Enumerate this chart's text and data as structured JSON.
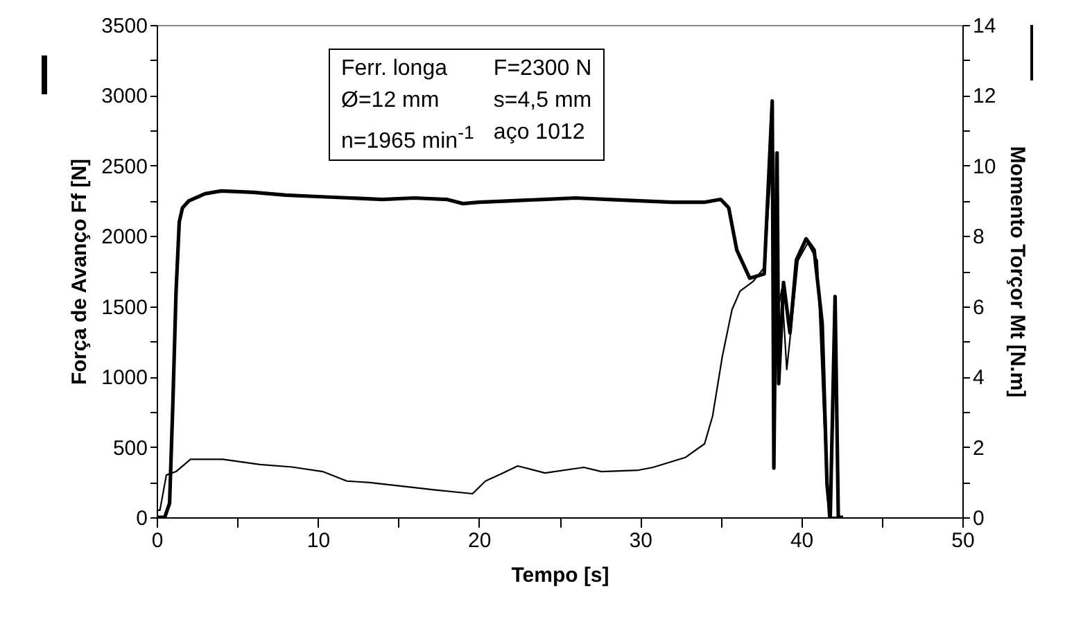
{
  "chart_data": {
    "type": "line",
    "xlabel": "Tempo [s]",
    "ylabel": "Força de Avanço Ff [N]",
    "y2label": "Momento Torçor Mt [N.m]",
    "xlim": [
      0,
      50
    ],
    "xticks": [
      0,
      {
        "value": 5,
        "label": null
      },
      10,
      {
        "value": 15,
        "label": null
      },
      20,
      {
        "value": 25,
        "label": null
      },
      30,
      {
        "value": 35,
        "label": null
      },
      40,
      {
        "value": 45,
        "label": null
      },
      50
    ],
    "ylim": [
      0,
      3500
    ],
    "yticks": [
      0,
      {
        "value": 250,
        "label": null
      },
      500,
      {
        "value": 750,
        "label": null
      },
      1000,
      {
        "value": 1250,
        "label": null
      },
      1500,
      {
        "value": 1750,
        "label": null
      },
      2000,
      {
        "value": 2250,
        "label": null
      },
      2500,
      {
        "value": 2750,
        "label": null
      },
      3000,
      {
        "value": 3250,
        "label": null
      },
      3500
    ],
    "y2lim": [
      0,
      14
    ],
    "y2ticks": [
      0,
      {
        "value": 1,
        "label": null
      },
      2,
      {
        "value": 3,
        "label": null
      },
      4,
      {
        "value": 5,
        "label": null
      },
      6,
      {
        "value": 7,
        "label": null
      },
      8,
      {
        "value": 9,
        "label": null
      },
      10,
      {
        "value": 11,
        "label": null
      },
      12,
      {
        "value": 13,
        "label": null
      },
      14
    ],
    "grid": false,
    "marker": "none",
    "line_style": "solid",
    "annotations": [
      "Ferr. longa",
      "F=2300 N",
      "Ø=12 mm",
      "s=4,5 mm",
      "n=1965 min$^{-1}$",
      "aço 1012"
    ],
    "series": [
      {
        "color": "#000000",
        "axis": "y",
        "x": [
          0,
          0.5,
          0.8,
          1.0,
          1.2,
          1.4,
          1.6,
          2,
          3,
          4,
          6,
          8,
          10,
          12,
          14,
          16,
          18,
          19,
          20,
          22,
          24,
          26,
          28,
          30,
          32,
          34,
          35,
          35.5,
          36,
          36.8,
          37.7,
          38.2,
          38.3,
          38.5,
          38.6,
          38.9,
          39.3,
          39.7,
          40.3,
          40.8,
          41.3,
          41.6,
          41.8,
          42.1,
          42.3,
          42.6
        ],
        "values": [
          0,
          0,
          100,
          800,
          1600,
          2100,
          2200,
          2250,
          2300,
          2320,
          2310,
          2290,
          2280,
          2270,
          2260,
          2270,
          2260,
          2230,
          2240,
          2250,
          2260,
          2270,
          2260,
          2250,
          2240,
          2240,
          2260,
          2200,
          1900,
          1700,
          1730,
          2960,
          350,
          2590,
          950,
          1670,
          1310,
          1830,
          1980,
          1900,
          1380,
          230,
          0,
          1570,
          0,
          0
        ]
      },
      {
        "color": "#000000",
        "axis": "y2",
        "x": [
          0,
          0.2,
          0.6,
          1.2,
          2.1,
          4.1,
          6.4,
          8.4,
          10.3,
          11.8,
          13.2,
          15.5,
          17.2,
          19.6,
          20.4,
          21.3,
          22.4,
          24.1,
          26.5,
          27.6,
          29.9,
          30.8,
          32.8,
          34.0,
          34.5,
          35.1,
          35.7,
          36.2,
          37.0,
          37.7,
          38.1,
          38.3,
          38.4,
          38.8,
          39.1,
          39.4,
          39.8,
          40.4,
          41.0,
          41.4,
          41.7,
          42.6
        ],
        "values": [
          0.2,
          0.2,
          1.2,
          1.3,
          1.65,
          1.65,
          1.5,
          1.43,
          1.3,
          1.03,
          0.99,
          0.87,
          0.78,
          0.67,
          1.03,
          1.22,
          1.46,
          1.26,
          1.42,
          1.3,
          1.34,
          1.42,
          1.7,
          2.09,
          2.88,
          4.57,
          5.9,
          6.43,
          6.7,
          7.1,
          9.7,
          10.4,
          5.5,
          6.5,
          4.2,
          5.5,
          7.3,
          7.8,
          7.3,
          2.9,
          0,
          0
        ]
      }
    ]
  }
}
